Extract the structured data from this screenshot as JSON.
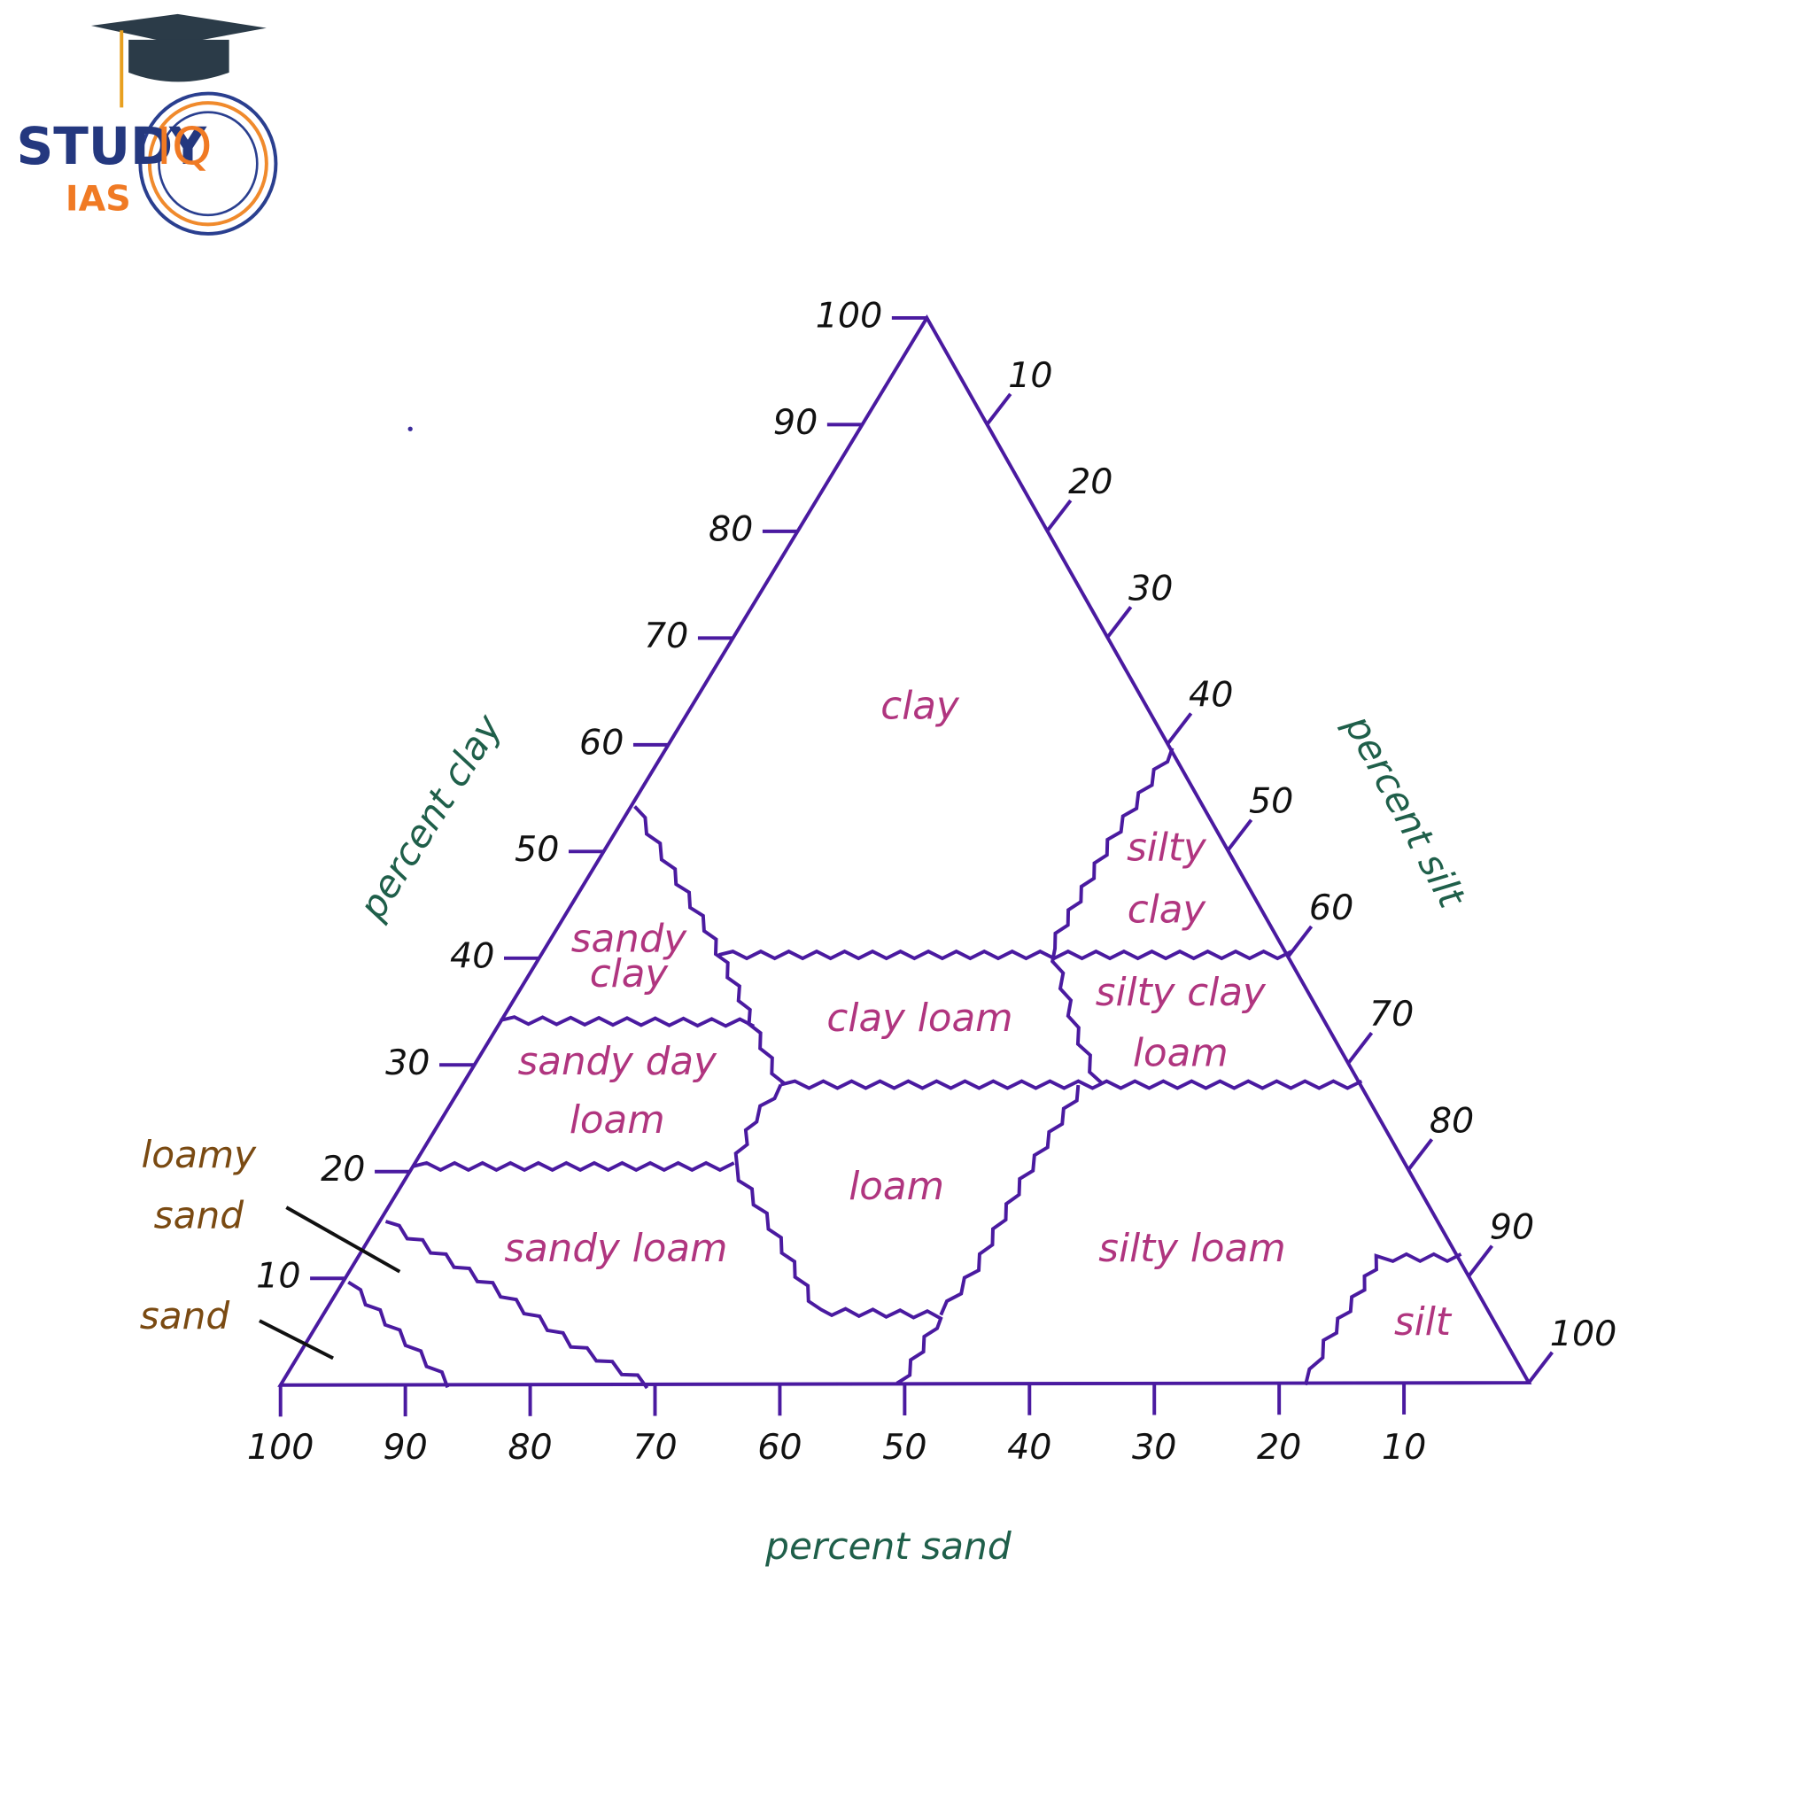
{
  "logo": {
    "brand": "STUDY",
    "iq": "IQ",
    "sub": "IAS"
  },
  "axes": {
    "clay": {
      "title": "percent clay",
      "ticks": [
        100,
        90,
        80,
        70,
        60,
        50,
        40,
        30,
        20,
        10
      ]
    },
    "silt": {
      "title": "percent silt",
      "ticks": [
        10,
        20,
        30,
        40,
        50,
        60,
        70,
        80,
        90,
        100
      ]
    },
    "sand": {
      "title": "percent sand",
      "ticks": [
        100,
        90,
        80,
        70,
        60,
        50,
        40,
        30,
        20,
        10
      ]
    }
  },
  "regions": [
    {
      "lines": [
        "clay"
      ]
    },
    {
      "lines": [
        "silty",
        "clay"
      ]
    },
    {
      "lines": [
        "sandy",
        "clay"
      ]
    },
    {
      "lines": [
        "clay loam"
      ]
    },
    {
      "lines": [
        "silty clay",
        "loam"
      ]
    },
    {
      "lines": [
        "sandy day",
        "loam"
      ]
    },
    {
      "lines": [
        "loam"
      ]
    },
    {
      "lines": [
        "sandy loam"
      ]
    },
    {
      "lines": [
        "silty loam"
      ]
    },
    {
      "lines": [
        "silt"
      ]
    }
  ],
  "callouts": [
    {
      "lines": [
        "loamy",
        "sand"
      ]
    },
    {
      "lines": [
        "sand"
      ]
    }
  ]
}
